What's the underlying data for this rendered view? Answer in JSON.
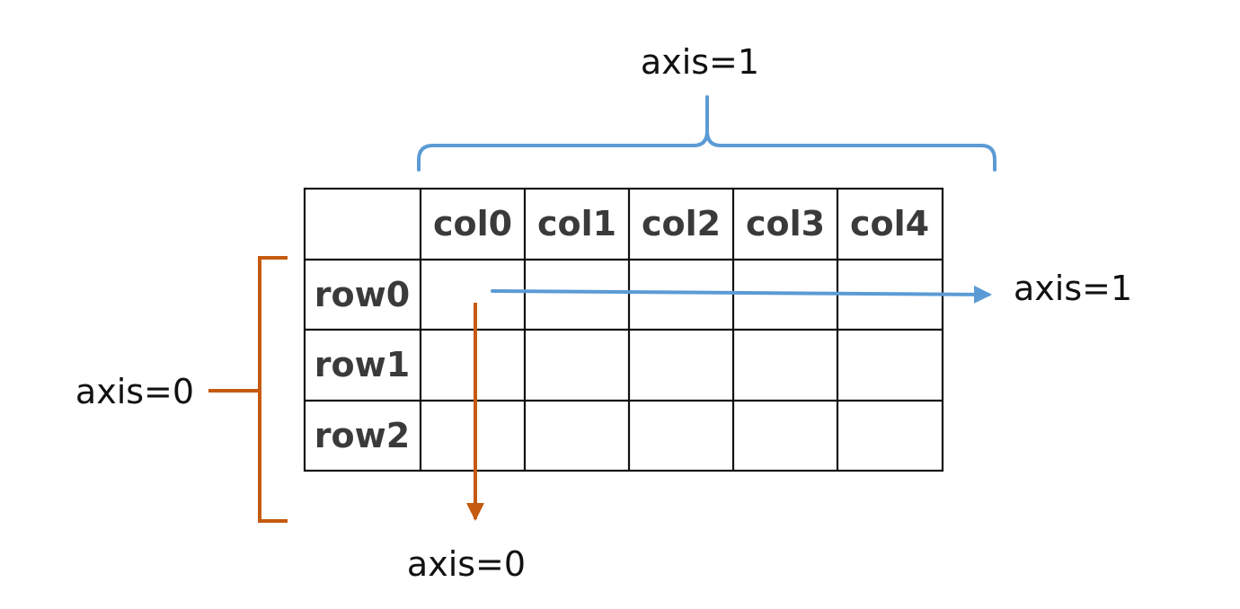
{
  "table": {
    "columns": [
      "col0",
      "col1",
      "col2",
      "col3",
      "col4"
    ],
    "rows": [
      "row0",
      "row1",
      "row2"
    ]
  },
  "annotations": {
    "top_brace_label": "axis=1",
    "right_arrow_label": "axis=1",
    "left_bracket_label": "axis=0",
    "down_arrow_label": "axis=0"
  },
  "colors": {
    "axis1": "#5b9bd5",
    "axis0": "#c55a11",
    "grid": "#111111",
    "header_text": "#3a3a3a"
  }
}
